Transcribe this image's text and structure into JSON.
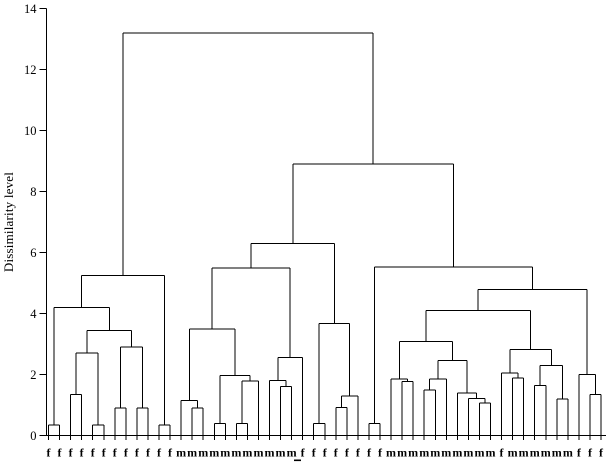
{
  "chart_data": {
    "type": "dendrogram",
    "title": "",
    "ylabel": "Dissimilarity level",
    "xlabel": "",
    "ylim": [
      0,
      14
    ],
    "yticks": [
      0,
      2,
      4,
      6,
      8,
      10,
      12,
      14
    ],
    "grid": false,
    "legend": "none",
    "footnote_dash": "-",
    "leaf_labels": [
      "f",
      "f",
      "f",
      "f",
      "f",
      "f",
      "f",
      "f",
      "f",
      "f",
      "f",
      "f",
      "m",
      "m",
      "m",
      "m",
      "m",
      "m",
      "m",
      "m",
      "m",
      "m",
      "m",
      "f",
      "f",
      "f",
      "f",
      "f",
      "f",
      "f",
      "f",
      "m",
      "m",
      "m",
      "m",
      "m",
      "m",
      "m",
      "m",
      "m",
      "m",
      "f",
      "m",
      "m",
      "m",
      "m",
      "m",
      "m",
      "f",
      "f",
      "f"
    ],
    "root_height": 13.2,
    "tree": {
      "h": 13.2,
      "c": [
        {
          "h": 5.25,
          "c": [
            {
              "h": 4.2,
              "c": [
                {
                  "h": 0.35,
                  "c": [
                    0,
                    1
                  ]
                },
                {
                  "h": 3.45,
                  "c": [
                    {
                      "h": 2.7,
                      "c": [
                        {
                          "h": 1.35,
                          "c": [
                            2,
                            3
                          ]
                        },
                        {
                          "h": 0.35,
                          "c": [
                            4,
                            5
                          ]
                        }
                      ]
                    },
                    {
                      "h": 2.9,
                      "c": [
                        {
                          "h": 0.9,
                          "c": [
                            6,
                            7
                          ]
                        },
                        {
                          "h": 0.9,
                          "c": [
                            8,
                            9
                          ]
                        }
                      ]
                    }
                  ]
                }
              ]
            },
            {
              "h": 0.35,
              "c": [
                10,
                11
              ]
            }
          ]
        },
        {
          "h": 8.9,
          "c": [
            {
              "h": 6.3,
              "c": [
                {
                  "h": 5.5,
                  "c": [
                    {
                      "h": 3.5,
                      "c": [
                        {
                          "h": 1.15,
                          "c": [
                            12,
                            {
                              "h": 0.9,
                              "c": [
                                13,
                                14
                              ]
                            }
                          ]
                        },
                        {
                          "h": 1.97,
                          "c": [
                            {
                              "h": 0.4,
                              "c": [
                                15,
                                16
                              ]
                            },
                            {
                              "h": 1.78,
                              "c": [
                                {
                                  "h": 0.4,
                                  "c": [
                                    17,
                                    18
                                  ]
                                },
                                19
                              ]
                            }
                          ]
                        }
                      ]
                    },
                    {
                      "h": 2.55,
                      "c": [
                        {
                          "h": 1.8,
                          "c": [
                            20,
                            {
                              "h": 1.6,
                              "c": [
                                21,
                                22
                              ]
                            }
                          ]
                        },
                        23
                      ]
                    }
                  ]
                },
                {
                  "h": 3.68,
                  "c": [
                    {
                      "h": 0.4,
                      "c": [
                        24,
                        25
                      ]
                    },
                    {
                      "h": 1.3,
                      "c": [
                        {
                          "h": 0.91,
                          "c": [
                            26,
                            27
                          ]
                        },
                        28
                      ]
                    }
                  ]
                }
              ]
            },
            {
              "h": 5.52,
              "c": [
                {
                  "h": 0.4,
                  "c": [
                    29,
                    30
                  ]
                },
                {
                  "h": 4.79,
                  "c": [
                    {
                      "h": 4.1,
                      "c": [
                        {
                          "h": 3.08,
                          "c": [
                            {
                              "h": 1.86,
                              "c": [
                                31,
                                {
                                  "h": 1.77,
                                  "c": [
                                    32,
                                    33
                                  ]
                                }
                              ]
                            },
                            {
                              "h": 2.46,
                              "c": [
                                {
                                  "h": 1.85,
                                  "c": [
                                    {
                                      "h": 1.5,
                                      "c": [
                                        34,
                                        35
                                      ]
                                    },
                                    36
                                  ]
                                },
                                {
                                  "h": 1.39,
                                  "c": [
                                    37,
                                    {
                                      "h": 1.22,
                                      "c": [
                                        38,
                                        {
                                          "h": 1.06,
                                          "c": [
                                            39,
                                            40
                                          ]
                                        }
                                      ]
                                    }
                                  ]
                                }
                              ]
                            }
                          ]
                        },
                        {
                          "h": 2.82,
                          "c": [
                            {
                              "h": 2.05,
                              "c": [
                                41,
                                {
                                  "h": 1.89,
                                  "c": [
                                    42,
                                    43
                                  ]
                                }
                              ]
                            },
                            {
                              "h": 2.3,
                              "c": [
                                {
                                  "h": 1.64,
                                  "c": [
                                    44,
                                    45
                                  ]
                                },
                                {
                                  "h": 1.2,
                                  "c": [
                                    46,
                                    47
                                  ]
                                }
                              ]
                            }
                          ]
                        }
                      ]
                    },
                    {
                      "h": 2.0,
                      "c": [
                        48,
                        {
                          "h": 1.35,
                          "c": [
                            49,
                            50
                          ]
                        }
                      ]
                    }
                  ]
                }
              ]
            }
          ]
        }
      ]
    },
    "line_color": "#000000",
    "background_color": "#ffffff"
  }
}
